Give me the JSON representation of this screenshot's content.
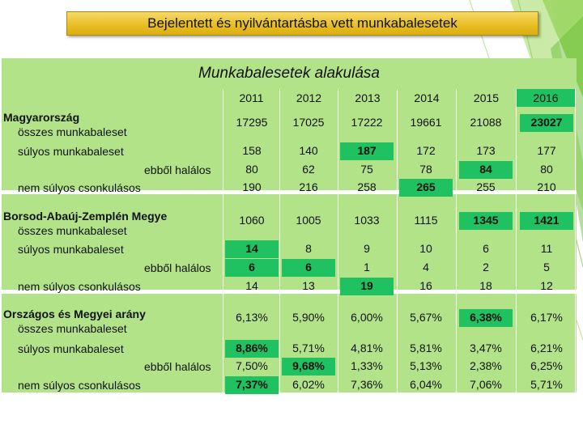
{
  "title": "Bejelentett és nyilvántartásba vett munkabalesetek",
  "panel_title": "Munkabalesetek alakulása",
  "years": [
    "2011",
    "2012",
    "2013",
    "2014",
    "2015",
    "2016"
  ],
  "sections": [
    {
      "heading": "Magyarország",
      "rows": [
        {
          "label": "összes munkabaleset",
          "values": [
            "17295",
            "17025",
            "17222",
            "19661",
            "21088",
            "23027"
          ],
          "highlight": [
            5
          ]
        },
        {
          "label": "súlyos munkabaleset",
          "values": [
            "158",
            "140",
            "187",
            "172",
            "173",
            "177"
          ],
          "highlight": [
            2
          ]
        },
        {
          "label": "ebből halálos",
          "values": [
            "80",
            "62",
            "75",
            "78",
            "84",
            "80"
          ],
          "highlight": [
            4
          ]
        },
        {
          "label": "nem súlyos csonkulásos",
          "values": [
            "190",
            "216",
            "258",
            "265",
            "255",
            "210"
          ],
          "highlight": [
            3
          ]
        }
      ]
    },
    {
      "heading": "Borsod-Abaúj-Zemplén Megye",
      "rows": [
        {
          "label": "összes munkabaleset",
          "values": [
            "1060",
            "1005",
            "1033",
            "1115",
            "1345",
            "1421"
          ],
          "highlight": [
            4,
            5
          ]
        },
        {
          "label": "súlyos munkabaleset",
          "values": [
            "14",
            "8",
            "9",
            "10",
            "6",
            "11"
          ],
          "highlight": [
            0
          ]
        },
        {
          "label": "ebből halálos",
          "values": [
            "6",
            "6",
            "1",
            "4",
            "2",
            "5"
          ],
          "highlight": [
            0,
            1
          ]
        },
        {
          "label": "nem súlyos csonkulásos",
          "values": [
            "14",
            "13",
            "19",
            "16",
            "18",
            "12"
          ],
          "highlight": [
            2
          ]
        }
      ]
    },
    {
      "heading": "Országos és Megyei arány",
      "rows": [
        {
          "label": "összes munkabaleset",
          "values": [
            "6,13%",
            "5,90%",
            "6,00%",
            "5,67%",
            "6,38%",
            "6,17%"
          ],
          "highlight": [
            4
          ]
        },
        {
          "label": "súlyos munkabaleset",
          "values": [
            "8,86%",
            "5,71%",
            "4,81%",
            "5,81%",
            "3,47%",
            "6,21%"
          ],
          "highlight": [
            0
          ]
        },
        {
          "label": "ebből halálos",
          "values": [
            "7,50%",
            "9,68%",
            "1,33%",
            "5,13%",
            "2,38%",
            "6,25%"
          ],
          "highlight": [
            1
          ]
        },
        {
          "label": "nem súlyos csonkulásos",
          "values": [
            "7,37%",
            "6,02%",
            "7,36%",
            "6,04%",
            "7,06%",
            "5,71%"
          ],
          "highlight": [
            0
          ]
        }
      ]
    }
  ],
  "colors": {
    "panel": "#b2e389",
    "highlight": "#1fc160",
    "title_box": "#e7bd22"
  }
}
